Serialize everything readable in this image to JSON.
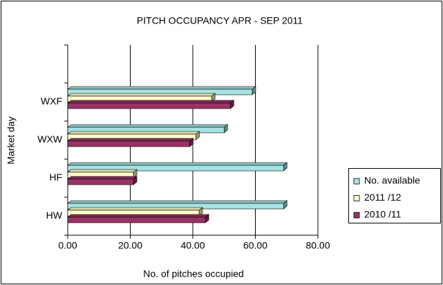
{
  "chart_data": {
    "type": "bar3d_horizontal",
    "title": "PITCH OCCUPANCY APR - SEP 2011",
    "x_label": "No. of pitches occupied",
    "y_label": "Market day",
    "categories": [
      null,
      "WXF",
      "WXW",
      "HF",
      "HW"
    ],
    "series": [
      {
        "name": "No. available",
        "color": "#a6e3e3",
        "values": [
          null,
          59,
          50,
          69,
          69
        ]
      },
      {
        "name": "2011 /12",
        "color": "#ffffcc",
        "values": [
          null,
          46,
          41,
          21,
          42
        ]
      },
      {
        "name": "2010 /11",
        "color": "#993366",
        "values": [
          null,
          52,
          39,
          21,
          44
        ]
      }
    ],
    "xlim": [
      0,
      80
    ],
    "xticks": [
      {
        "value": 0,
        "label": "0.00"
      },
      {
        "value": 20,
        "label": "20.00"
      },
      {
        "value": 40,
        "label": "40.00"
      },
      {
        "value": 60,
        "label": "60.00"
      },
      {
        "value": 80,
        "label": "80.00"
      }
    ],
    "grid": true,
    "legend": "right"
  }
}
